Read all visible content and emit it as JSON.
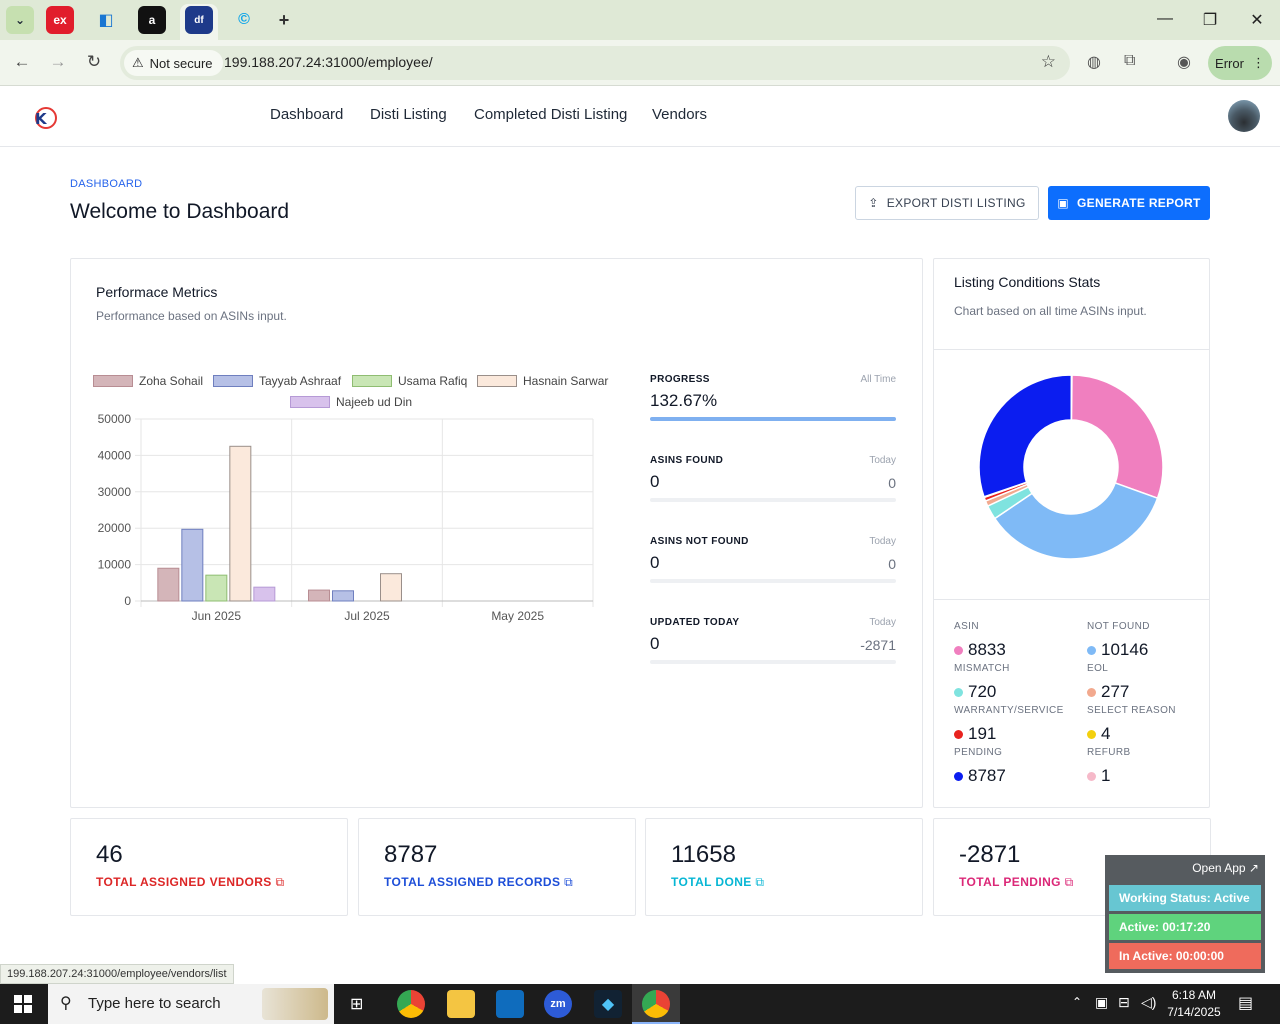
{
  "browser": {
    "security_label": "Not secure",
    "url": "199.188.207.24:31000/employee/",
    "profile_status": "Error",
    "tabs": [
      {
        "icon": "ex-icon"
      },
      {
        "icon": "blue-app-icon"
      },
      {
        "icon": "amazon-icon"
      },
      {
        "icon": "df-icon",
        "active": true
      },
      {
        "icon": "c-icon"
      }
    ],
    "status_url": "199.188.207.24:31000/employee/vendors/list"
  },
  "nav": {
    "items": [
      "Dashboard",
      "Distí Listing",
      "Completed Disti Listing",
      "Vendors"
    ],
    "active": "Dashboard"
  },
  "page": {
    "breadcrumb": "DASHBOARD",
    "title": "Welcome to Dashboard",
    "export_label": "EXPORT DISTI LISTING",
    "report_label": "GENERATE REPORT"
  },
  "performance": {
    "title": "Performace Metrics",
    "subtitle": "Performance based on ASINs input.",
    "metrics": [
      {
        "label": "PROGRESS",
        "right": "All Time",
        "value": "132.67%",
        "value2": "",
        "fill": 1.0
      },
      {
        "label": "ASINS FOUND",
        "right": "Today",
        "value": "0",
        "value2": "0",
        "fill": 0
      },
      {
        "label": "ASINS NOT FOUND",
        "right": "Today",
        "value": "0",
        "value2": "0",
        "fill": 0
      },
      {
        "label": "UPDATED TODAY",
        "right": "Today",
        "value": "0",
        "value2": "-2871",
        "fill": 0
      }
    ]
  },
  "chart_data": {
    "type": "bar",
    "categories": [
      "Jun 2025",
      "Jul 2025",
      "May 2025"
    ],
    "ylim": [
      0,
      50000
    ],
    "yticks": [
      "50000",
      "40000",
      "30000",
      "20000",
      "10000",
      "0"
    ],
    "series": [
      {
        "name": "Zoha Sohail",
        "values": [
          9000,
          3000,
          0
        ],
        "color": "#d4b5b9",
        "stroke": "#b88d93"
      },
      {
        "name": "Tayyab Ashraaf",
        "values": [
          19700,
          2800,
          0
        ],
        "color": "#b6c0e6",
        "stroke": "#6f7fbf"
      },
      {
        "name": "Usama Rafiq",
        "values": [
          7100,
          0,
          0
        ],
        "color": "#c9e6b5",
        "stroke": "#8fbd72"
      },
      {
        "name": "Hasnain Sarwar",
        "values": [
          42500,
          7500,
          0
        ],
        "color": "#fbe9dc",
        "stroke": "#9a8f8a"
      },
      {
        "name": "Najeeb ud Din",
        "values": [
          3800,
          0,
          0
        ],
        "color": "#d8c2ec",
        "stroke": "#b69ad6"
      }
    ]
  },
  "conditions": {
    "title": "Listing Conditions Stats",
    "subtitle": "Chart based on all time ASINs input.",
    "donut": [
      {
        "value": 8833,
        "color": "#f07fbf"
      },
      {
        "value": 10146,
        "color": "#7fbaf6"
      },
      {
        "value": 720,
        "color": "#7fe3df"
      },
      {
        "value": 277,
        "color": "#f2a98e"
      },
      {
        "value": 191,
        "color": "#e8231f"
      },
      {
        "value": 4,
        "color": "#f3d00e"
      },
      {
        "value": 8787,
        "color": "#0b1df0"
      },
      {
        "value": 1,
        "color": "#f6b9c9"
      }
    ],
    "stats": [
      {
        "label": "ASIN",
        "value": "8833",
        "color": "#f07fbf"
      },
      {
        "label": "NOT FOUND",
        "value": "10146",
        "color": "#7fbaf6"
      },
      {
        "label": "MISMATCH",
        "value": "720",
        "color": "#7fe3df"
      },
      {
        "label": "EOL",
        "value": "277",
        "color": "#f2a98e"
      },
      {
        "label": "WARRANTY/SERVICE",
        "value": "191",
        "color": "#e8231f"
      },
      {
        "label": "SELECT REASON",
        "value": "4",
        "color": "#f3d00e"
      },
      {
        "label": "PENDING",
        "value": "8787",
        "color": "#0b1df0"
      },
      {
        "label": "REFURB",
        "value": "1",
        "color": "#f6b9c9"
      }
    ]
  },
  "kpis": [
    {
      "value": "46",
      "label": "TOTAL ASSIGNED VENDORS",
      "color": "#dc2626"
    },
    {
      "value": "8787",
      "label": "TOTAL ASSIGNED RECORDS",
      "color": "#1d4ed8"
    },
    {
      "value": "11658",
      "label": "TOTAL DONE",
      "color": "#06b6d4"
    },
    {
      "value": "-2871",
      "label": "TOTAL PENDING",
      "color": "#db2777"
    }
  ],
  "widget": {
    "open_label": "Open App ↗",
    "status": "Working Status: Active",
    "active": "Active: 00:17:20",
    "inactive": "In Active: 00:00:00"
  },
  "taskbar": {
    "search_placeholder": "Type here to search",
    "time": "6:18 AM",
    "date": "7/14/2025"
  }
}
